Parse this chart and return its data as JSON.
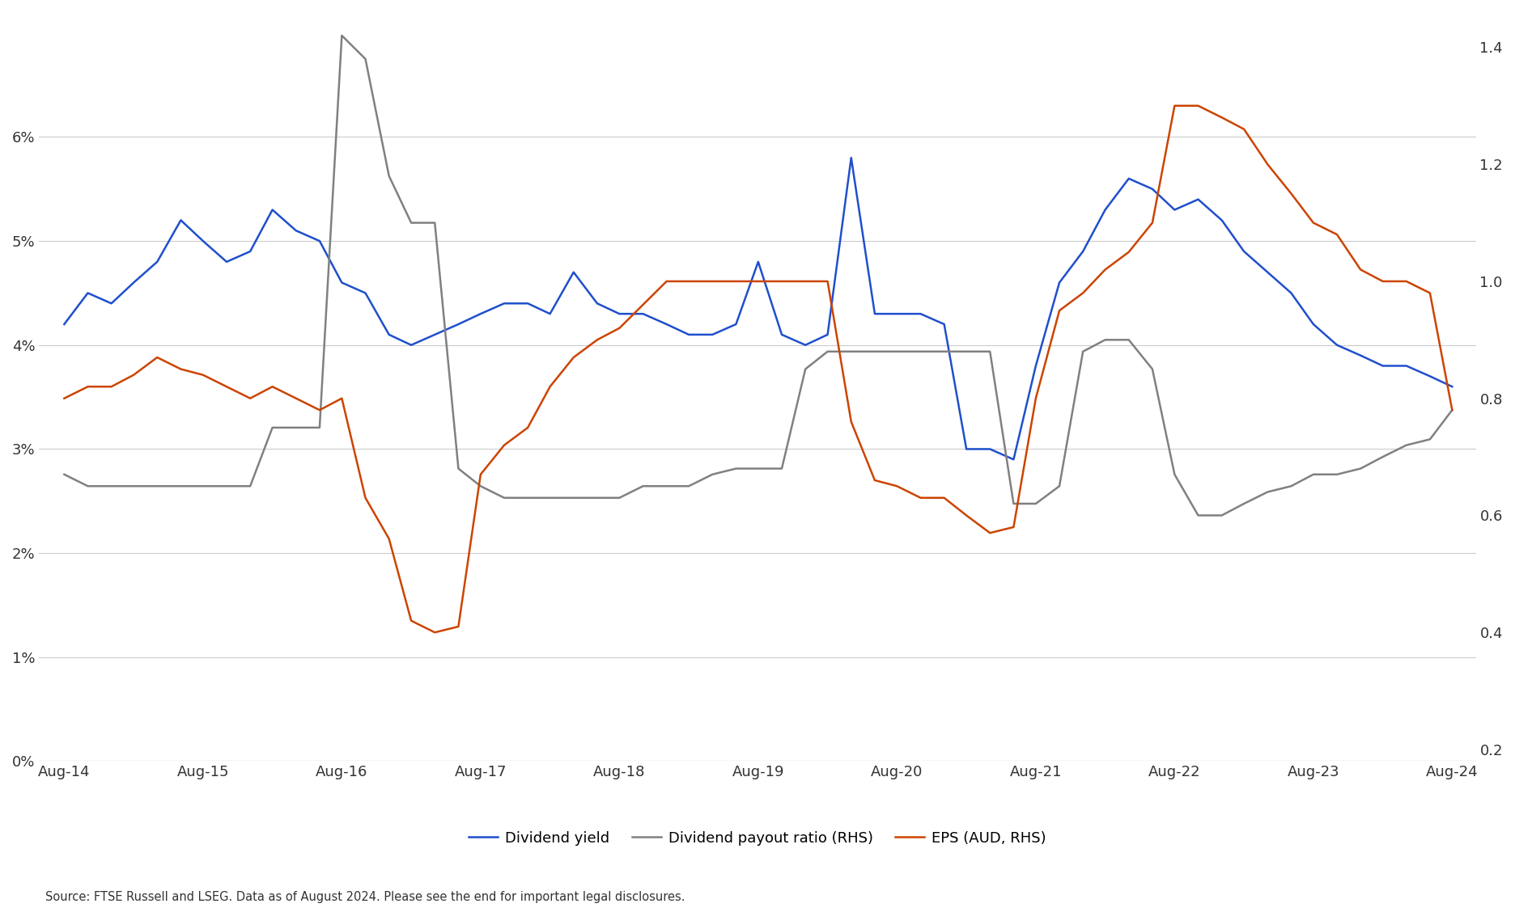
{
  "title": "",
  "source_text": "Source: FTSE Russell and LSEG. Data as of August 2024. Please see the end for important legal disclosures.",
  "x_labels": [
    "Aug-14",
    "Aug-15",
    "Aug-16",
    "Aug-17",
    "Aug-18",
    "Aug-19",
    "Aug-20",
    "Aug-21",
    "Aug-22",
    "Aug-23",
    "Aug-24"
  ],
  "left_ylim": [
    0,
    0.072
  ],
  "right_ylim": [
    0.18,
    1.46
  ],
  "left_yticks": [
    0,
    0.01,
    0.02,
    0.03,
    0.04,
    0.05,
    0.06
  ],
  "right_yticks": [
    0.2,
    0.4,
    0.6,
    0.8,
    1.0,
    1.2,
    1.4
  ],
  "left_yticklabels": [
    "0%",
    "1%",
    "2%",
    "3%",
    "4%",
    "5%",
    "6%"
  ],
  "right_yticklabels": [
    "0.2",
    "0.4",
    "0.6",
    "0.8",
    "1.0",
    "1.2",
    "1.4"
  ],
  "background_color": "#ffffff",
  "grid_color": "#cccccc",
  "legend_items": [
    {
      "label": "Dividend yield",
      "color": "#1f4fcc",
      "lw": 1.8
    },
    {
      "label": "Dividend payout ratio (RHS)",
      "color": "#808080",
      "lw": 1.8
    },
    {
      "label": "EPS (AUD, RHS)",
      "color": "#cc4400",
      "lw": 1.8
    }
  ],
  "div_yield": {
    "color": "#1f4fcc",
    "lw": 1.8,
    "x": [
      2014.58,
      2014.75,
      2014.92,
      2015.08,
      2015.25,
      2015.42,
      2015.58,
      2015.75,
      2015.92,
      2016.08,
      2016.25,
      2016.42,
      2016.58,
      2016.75,
      2016.92,
      2017.08,
      2017.25,
      2017.42,
      2017.58,
      2017.75,
      2017.92,
      2018.08,
      2018.25,
      2018.42,
      2018.58,
      2018.75,
      2018.92,
      2019.08,
      2019.25,
      2019.42,
      2019.58,
      2019.75,
      2019.92,
      2020.08,
      2020.25,
      2020.42,
      2020.58,
      2020.75,
      2020.92,
      2021.08,
      2021.25,
      2021.42,
      2021.58,
      2021.75,
      2021.92,
      2022.08,
      2022.25,
      2022.42,
      2022.58,
      2022.75,
      2022.92,
      2023.08,
      2023.25,
      2023.42,
      2023.58,
      2023.75,
      2023.92,
      2024.08,
      2024.25,
      2024.42,
      2024.58
    ],
    "y": [
      0.042,
      0.045,
      0.044,
      0.046,
      0.048,
      0.052,
      0.05,
      0.048,
      0.049,
      0.053,
      0.051,
      0.05,
      0.046,
      0.045,
      0.041,
      0.04,
      0.041,
      0.042,
      0.043,
      0.044,
      0.044,
      0.043,
      0.047,
      0.044,
      0.043,
      0.043,
      0.042,
      0.041,
      0.041,
      0.042,
      0.048,
      0.041,
      0.04,
      0.041,
      0.058,
      0.043,
      0.043,
      0.043,
      0.042,
      0.03,
      0.03,
      0.029,
      0.038,
      0.046,
      0.049,
      0.053,
      0.056,
      0.055,
      0.053,
      0.054,
      0.052,
      0.049,
      0.047,
      0.045,
      0.042,
      0.04,
      0.039,
      0.038,
      0.038,
      0.037,
      0.036
    ]
  },
  "div_payout": {
    "color": "#808080",
    "lw": 1.8,
    "x": [
      2014.58,
      2014.75,
      2014.92,
      2015.08,
      2015.25,
      2015.42,
      2015.58,
      2015.75,
      2015.92,
      2016.08,
      2016.25,
      2016.42,
      2016.58,
      2016.75,
      2016.92,
      2017.08,
      2017.25,
      2017.42,
      2017.58,
      2017.75,
      2017.92,
      2018.08,
      2018.25,
      2018.42,
      2018.58,
      2018.75,
      2018.92,
      2019.08,
      2019.25,
      2019.42,
      2019.58,
      2019.75,
      2019.92,
      2020.08,
      2020.25,
      2020.42,
      2020.58,
      2020.75,
      2020.92,
      2021.08,
      2021.25,
      2021.42,
      2021.58,
      2021.75,
      2021.92,
      2022.08,
      2022.25,
      2022.42,
      2022.58,
      2022.75,
      2022.92,
      2023.08,
      2023.25,
      2023.42,
      2023.58,
      2023.75,
      2023.92,
      2024.08,
      2024.25,
      2024.42,
      2024.58
    ],
    "y": [
      0.67,
      0.65,
      0.65,
      0.65,
      0.65,
      0.65,
      0.65,
      0.65,
      0.65,
      0.75,
      0.75,
      0.75,
      1.42,
      1.38,
      1.18,
      1.1,
      1.1,
      0.68,
      0.65,
      0.63,
      0.63,
      0.63,
      0.63,
      0.63,
      0.63,
      0.65,
      0.65,
      0.65,
      0.67,
      0.68,
      0.68,
      0.68,
      0.85,
      0.88,
      0.88,
      0.88,
      0.88,
      0.88,
      0.88,
      0.88,
      0.88,
      0.62,
      0.62,
      0.65,
      0.88,
      0.9,
      0.9,
      0.85,
      0.67,
      0.6,
      0.6,
      0.62,
      0.64,
      0.65,
      0.67,
      0.67,
      0.68,
      0.7,
      0.72,
      0.73,
      0.78
    ]
  },
  "eps": {
    "color": "#cc4400",
    "lw": 1.8,
    "x": [
      2014.58,
      2014.75,
      2014.92,
      2015.08,
      2015.25,
      2015.42,
      2015.58,
      2015.75,
      2015.92,
      2016.08,
      2016.25,
      2016.42,
      2016.58,
      2016.75,
      2016.92,
      2017.08,
      2017.25,
      2017.42,
      2017.58,
      2017.75,
      2017.92,
      2018.08,
      2018.25,
      2018.42,
      2018.58,
      2018.75,
      2018.92,
      2019.08,
      2019.25,
      2019.42,
      2019.58,
      2019.75,
      2019.92,
      2020.08,
      2020.25,
      2020.42,
      2020.58,
      2020.75,
      2020.92,
      2021.08,
      2021.25,
      2021.42,
      2021.58,
      2021.75,
      2021.92,
      2022.08,
      2022.25,
      2022.42,
      2022.58,
      2022.75,
      2022.92,
      2023.08,
      2023.25,
      2023.42,
      2023.58,
      2023.75,
      2023.92,
      2024.08,
      2024.25,
      2024.42,
      2024.58
    ],
    "y": [
      0.8,
      0.82,
      0.82,
      0.84,
      0.87,
      0.85,
      0.84,
      0.82,
      0.8,
      0.82,
      0.8,
      0.78,
      0.8,
      0.63,
      0.56,
      0.42,
      0.4,
      0.41,
      0.67,
      0.72,
      0.75,
      0.82,
      0.87,
      0.9,
      0.92,
      0.96,
      1.0,
      1.0,
      1.0,
      1.0,
      1.0,
      1.0,
      1.0,
      1.0,
      0.76,
      0.66,
      0.65,
      0.63,
      0.63,
      0.6,
      0.57,
      0.58,
      0.8,
      0.95,
      0.98,
      1.02,
      1.05,
      1.1,
      1.3,
      1.3,
      1.28,
      1.26,
      1.2,
      1.15,
      1.1,
      1.08,
      1.02,
      1.0,
      1.0,
      0.98,
      0.78
    ]
  }
}
